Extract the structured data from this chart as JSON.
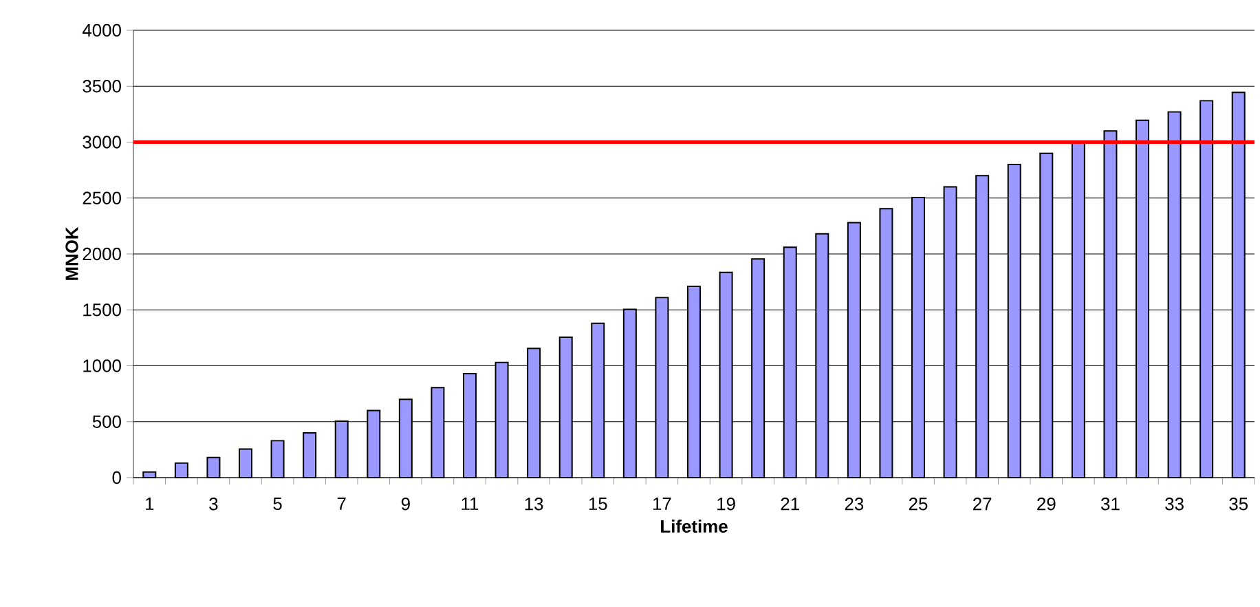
{
  "chart_data": {
    "type": "bar",
    "xlabel": "Lifetime",
    "ylabel": "MNOK",
    "categories": [
      "1",
      null,
      "3",
      null,
      "5",
      null,
      "7",
      null,
      "9",
      null,
      "11",
      null,
      "13",
      null,
      "15",
      null,
      "17",
      null,
      "19",
      null,
      "21",
      null,
      "23",
      null,
      "25",
      null,
      "27",
      null,
      "29",
      null,
      "31",
      null,
      "33",
      null,
      "35"
    ],
    "values": [
      50,
      130,
      180,
      255,
      330,
      400,
      505,
      600,
      700,
      805,
      930,
      1030,
      1155,
      1255,
      1380,
      1505,
      1610,
      1710,
      1835,
      1955,
      2060,
      2180,
      2280,
      2405,
      2505,
      2600,
      2700,
      2800,
      2900,
      3000,
      3100,
      3195,
      3270,
      3370,
      3445
    ],
    "color": "#9999ff",
    "ylim": [
      0,
      4000
    ],
    "yticks": [
      0,
      500,
      1000,
      1500,
      2000,
      2500,
      3000,
      3500,
      4000
    ],
    "grid": "y",
    "ref_lines": [
      {
        "axis": "y",
        "value": 3000,
        "color": "#ff0000"
      }
    ]
  }
}
